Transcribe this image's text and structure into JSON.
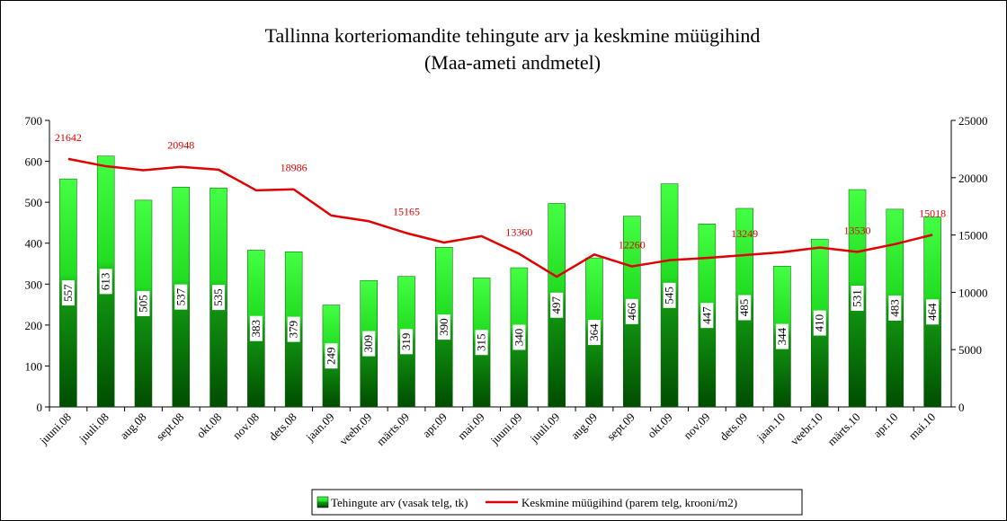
{
  "chart_data": {
    "type": "bar-line",
    "title": "Tallinna korteriomandite tehingute arv ja keskmine müügihind",
    "subtitle": "(Maa-ameti andmetel)",
    "categories": [
      "juuni.08",
      "juuli.08",
      "aug.08",
      "sept.08",
      "okt.08",
      "nov.08",
      "dets.08",
      "jaan.09",
      "veebr.09",
      "märts.09",
      "apr.09",
      "mai.09",
      "juuni.09",
      "juuli.09",
      "aug.09",
      "sept.09",
      "okt.09",
      "nov.09",
      "dets.09",
      "jaan.10",
      "veebr.10",
      "märts.10",
      "apr.10",
      "mai.10"
    ],
    "series": [
      {
        "name": "Tehingute arv (vasak telg, tk)",
        "type": "bar",
        "color": "#22cc22",
        "values": [
          557,
          613,
          505,
          537,
          535,
          383,
          379,
          249,
          309,
          319,
          390,
          315,
          340,
          497,
          364,
          466,
          545,
          447,
          485,
          344,
          410,
          531,
          483,
          464
        ]
      },
      {
        "name": "Keskmine müügihind (parem telg, krooni/m2)",
        "type": "line",
        "axis": "y2",
        "color": "#e00000",
        "values": [
          21642,
          21000,
          20650,
          20948,
          20700,
          18900,
          18986,
          16700,
          16200,
          15165,
          14340,
          14900,
          13360,
          11360,
          13300,
          12260,
          12800,
          13000,
          13249,
          13500,
          13900,
          13530,
          14200,
          15018
        ],
        "value_labels": [
          21642,
          null,
          null,
          20948,
          null,
          null,
          18986,
          null,
          null,
          15165,
          null,
          null,
          13360,
          null,
          null,
          12260,
          null,
          null,
          13249,
          null,
          null,
          13530,
          null,
          15018
        ]
      }
    ],
    "ylim": [
      0,
      700
    ],
    "yticks": [
      0,
      100,
      200,
      300,
      400,
      500,
      600,
      700
    ],
    "y2lim": [
      0,
      25000
    ],
    "y2ticks": [
      0,
      5000,
      10000,
      15000,
      20000,
      25000
    ],
    "legend": "bottom"
  }
}
